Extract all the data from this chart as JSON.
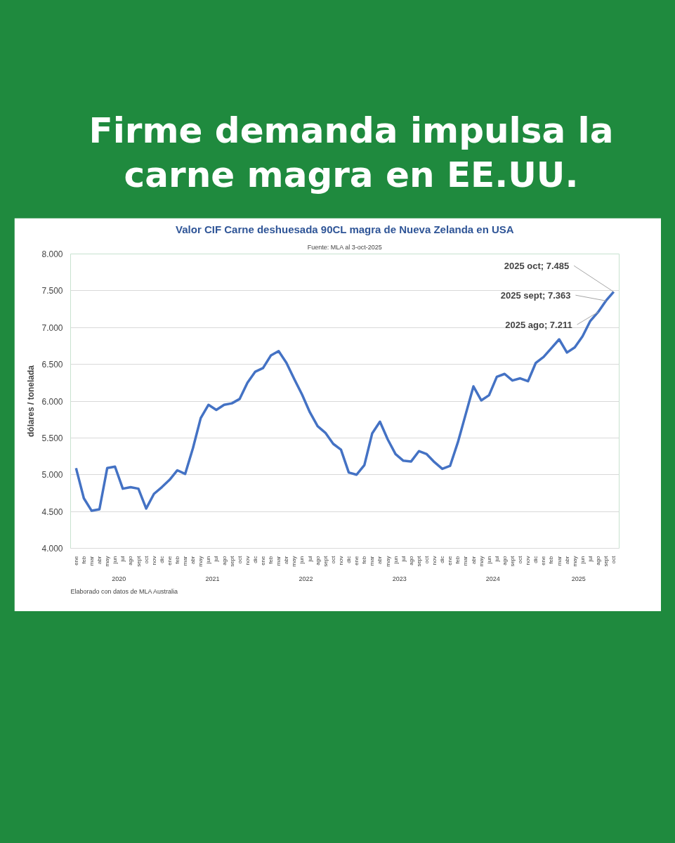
{
  "chart_data": {
    "type": "line",
    "title": "Firme demanda impulsa la carne magra en EE.UU.",
    "subtitle": "Valor CIF Carne deshuesada 90CL magra de Nueva Zelanda en USA",
    "annotations": [
      "Fuente: MLA al 3-oct-2025",
      "Elaborado con datos de MLA Australia",
      "2020",
      "2021",
      "2022",
      "2023",
      "2024",
      "2025"
    ],
    "ylabel": "dólares / tonelada",
    "categories": [
      "ene",
      "feb",
      "mar",
      "abr",
      "may",
      "jun",
      "jul",
      "ago",
      "sept",
      "oct",
      "nov",
      "dic",
      "ene",
      "feb",
      "mar",
      "abr",
      "may",
      "jun",
      "jul",
      "ago",
      "sept",
      "oct",
      "nov",
      "dic",
      "ene",
      "feb",
      "mar",
      "abr",
      "may",
      "jun",
      "jul",
      "ago",
      "sept",
      "oct",
      "nov",
      "dic",
      "ene",
      "feb",
      "mar",
      "abr",
      "may",
      "jun",
      "jul",
      "ago",
      "sept",
      "oct",
      "nov",
      "dic",
      "ene",
      "feb",
      "mar",
      "abr",
      "may",
      "jun",
      "jul",
      "ago",
      "sept",
      "oct",
      "nov",
      "dic",
      "ene",
      "feb",
      "mar",
      "abr",
      "may",
      "jun",
      "jul",
      "ago",
      "sept",
      "oct"
    ],
    "series": [
      {
        "color": "#4472c4",
        "values": [
          5090,
          4680,
          4510,
          4530,
          5090,
          5110,
          4810,
          4830,
          4810,
          4540,
          4740,
          4830,
          4930,
          5060,
          5010,
          5360,
          5770,
          5950,
          5880,
          5950,
          5970,
          6030,
          6250,
          6400,
          6450,
          6620,
          6680,
          6520,
          6300,
          6090,
          5850,
          5660,
          5570,
          5420,
          5340,
          5030,
          5000,
          5130,
          5560,
          5720,
          5480,
          5280,
          5190,
          5180,
          5320,
          5280,
          5170,
          5080,
          5120,
          5440,
          5820,
          6200,
          6010,
          6080,
          6330,
          6370,
          6280,
          6310,
          6270,
          6520,
          6600,
          6720,
          6840,
          6660,
          6730,
          6880,
          7090,
          7211,
          7363,
          7485
        ],
        "value_labels": [
          null,
          null,
          null,
          null,
          null,
          null,
          null,
          null,
          null,
          null,
          null,
          null,
          null,
          null,
          null,
          null,
          null,
          null,
          null,
          null,
          null,
          null,
          null,
          null,
          null,
          null,
          null,
          null,
          null,
          null,
          null,
          null,
          null,
          null,
          null,
          null,
          null,
          null,
          null,
          null,
          null,
          null,
          null,
          null,
          null,
          null,
          null,
          null,
          null,
          null,
          null,
          null,
          null,
          null,
          null,
          null,
          null,
          null,
          null,
          null,
          null,
          null,
          null,
          null,
          null,
          null,
          null,
          "2025 ago;  7.211",
          "2025 sept;  7.363",
          "2025 oct;  7.485"
        ]
      }
    ],
    "ylim": [
      4000,
      8000
    ],
    "yticks": [
      {
        "value": 4000,
        "label": "4.000"
      },
      {
        "value": 4500,
        "label": "4.500"
      },
      {
        "value": 5000,
        "label": "5.000"
      },
      {
        "value": 5500,
        "label": "5.500"
      },
      {
        "value": 6000,
        "label": "6.000"
      },
      {
        "value": 6500,
        "label": "6.500"
      },
      {
        "value": 7000,
        "label": "7.000"
      },
      {
        "value": 7500,
        "label": "7.500"
      },
      {
        "value": 8000,
        "label": "8.000"
      }
    ],
    "grid": "y",
    "marker": "none",
    "line_style": "solid"
  }
}
